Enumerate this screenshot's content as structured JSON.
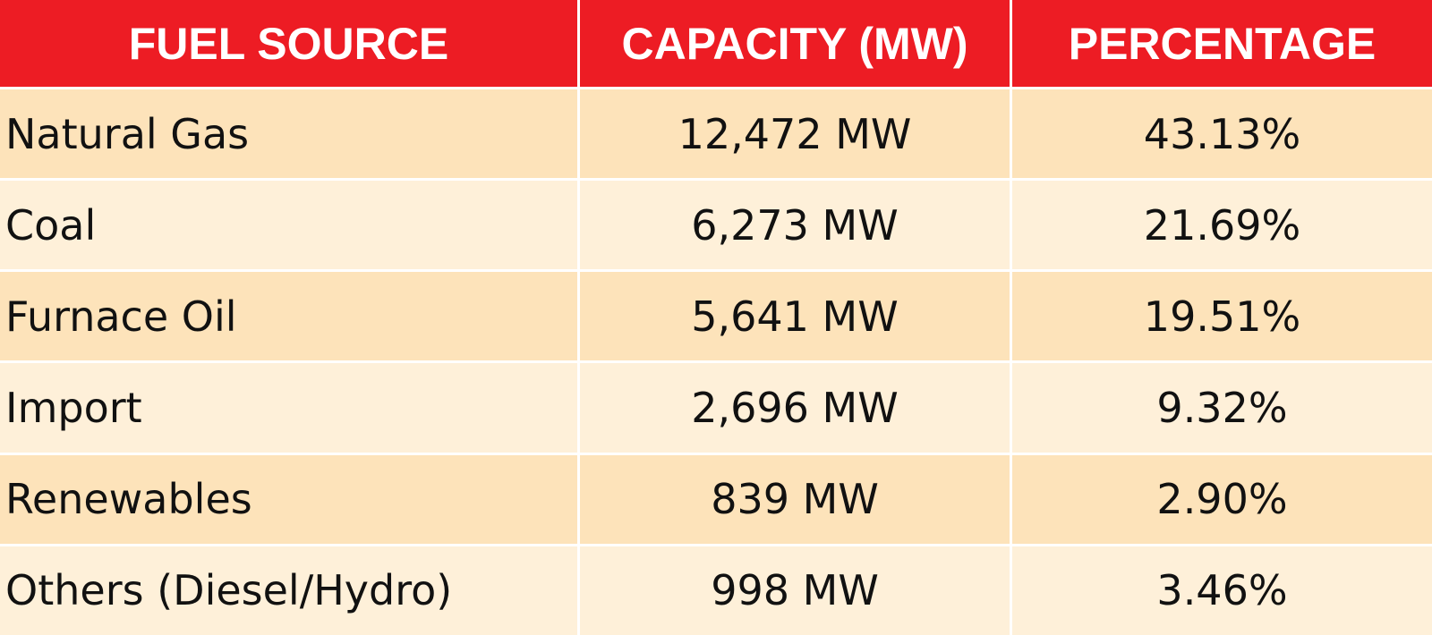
{
  "chart_data": {
    "type": "table",
    "columns": [
      "FUEL SOURCE",
      "CAPACITY (MW)",
      "PERCENTAGE"
    ],
    "rows": [
      [
        "Natural Gas",
        "12,472 MW",
        "43.13%"
      ],
      [
        "Coal",
        "6,273 MW",
        "21.69%"
      ],
      [
        "Furnace Oil",
        "5,641 MW",
        "19.51%"
      ],
      [
        "Import",
        "2,696 MW",
        "9.32%"
      ],
      [
        "Renewables",
        "839 MW",
        "2.90%"
      ],
      [
        "Others (Diesel/Hydro)",
        "998 MW",
        "3.46%"
      ]
    ]
  },
  "colors": {
    "header": "#ED1C24",
    "row_dark": "#FDE3BA",
    "row_light": "#FEF0D9"
  }
}
